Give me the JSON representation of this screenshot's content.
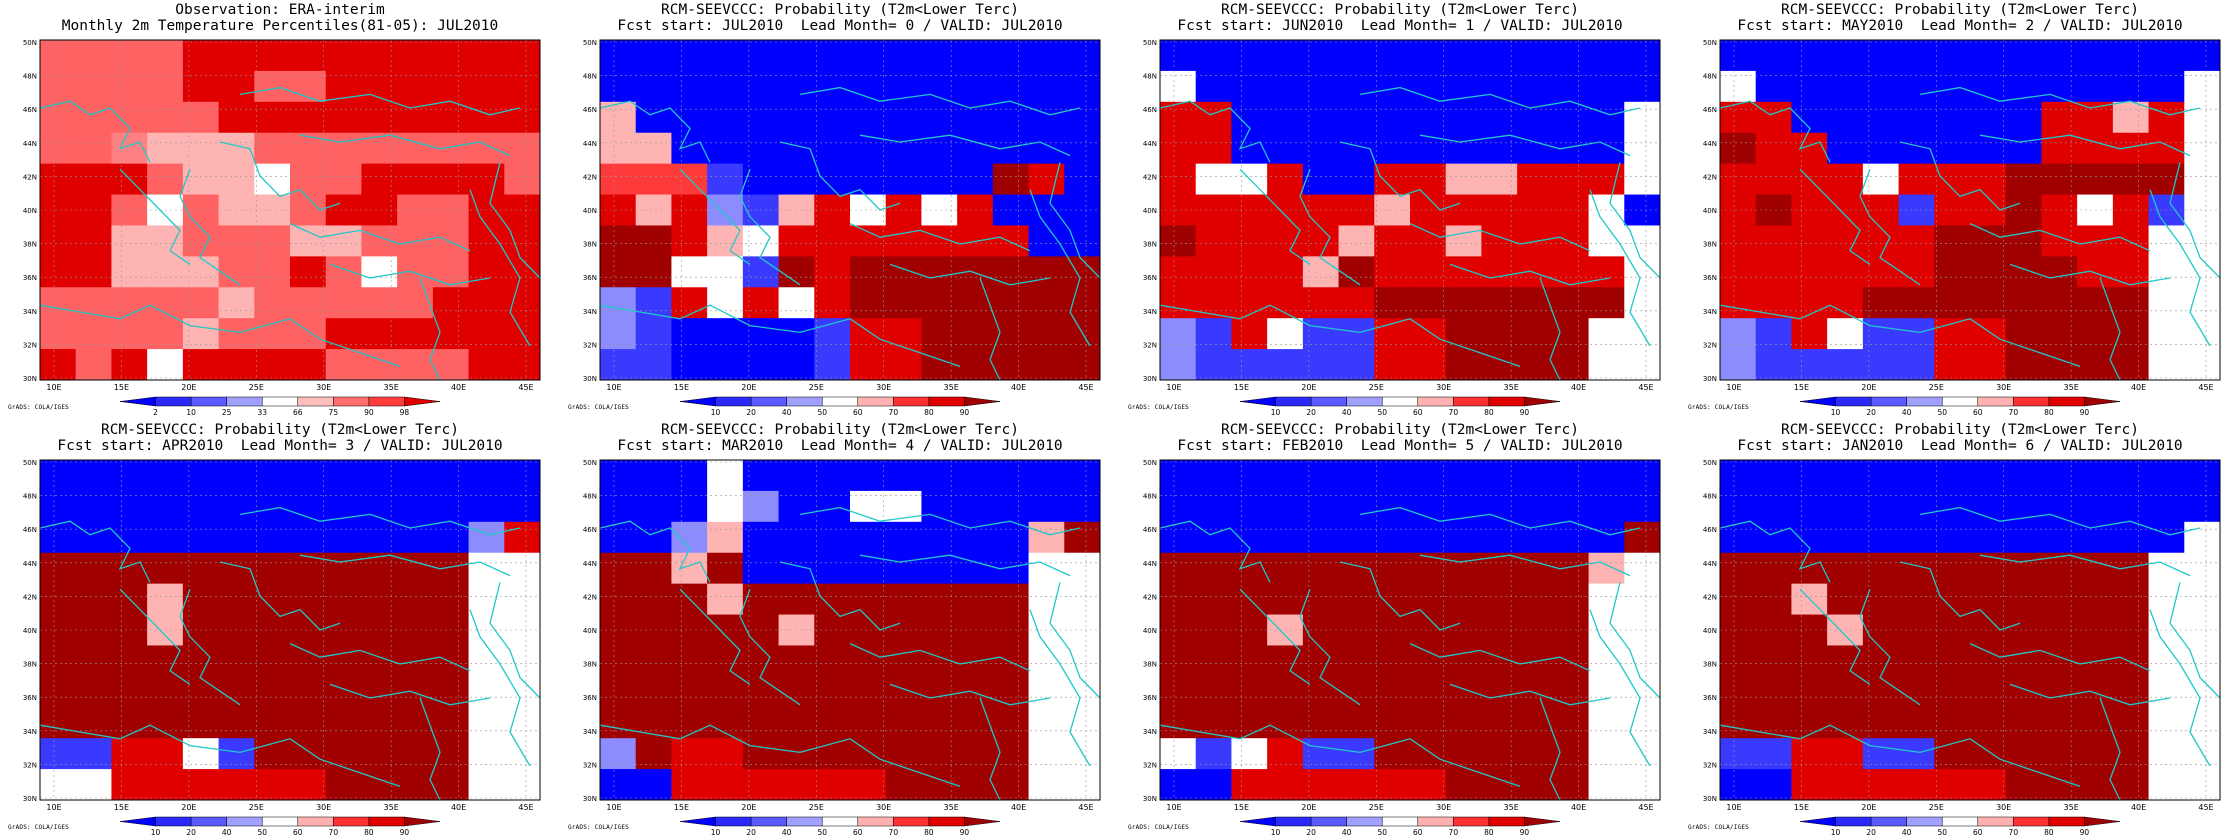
{
  "credit": "GrADS: COLA/IGES",
  "lat_labels": [
    "50N",
    "48N",
    "46N",
    "44N",
    "42N",
    "40N",
    "38N",
    "36N",
    "34N",
    "32N",
    "30N"
  ],
  "lon_labels": [
    "10E",
    "15E",
    "20E",
    "25E",
    "30E",
    "35E",
    "40E",
    "45E"
  ],
  "obs_colorbar": {
    "labels": [
      "2",
      "10",
      "25",
      "33",
      "66",
      "75",
      "90",
      "98"
    ],
    "colors": [
      "#0000ff",
      "#2a2aff",
      "#5a5aff",
      "#a0a0ff",
      "#ffffff",
      "#ffbebe",
      "#ff6f6f",
      "#ff3c3c",
      "#e00000"
    ]
  },
  "prob_colorbar": {
    "labels": [
      "10",
      "20",
      "40",
      "50",
      "60",
      "70",
      "80",
      "90"
    ],
    "colors": [
      "#0000ff",
      "#2a2aff",
      "#5a5aff",
      "#a0a0ff",
      "#ffffff",
      "#ffb0b0",
      "#ff3030",
      "#e00000",
      "#a00000"
    ]
  },
  "panels": [
    {
      "id": "obs",
      "title1": "Observation: ERA-interim",
      "title2": "Monthly 2m Temperature Percentiles(81-05): JUL2010",
      "bar": "obs"
    },
    {
      "id": "lead0",
      "title1": "RCM-SEEVCCC: Probability (T2m<Lower Terc)",
      "title2": "Fcst start: JUL2010  Lead Month= 0 / VALID: JUL2010",
      "bar": "prob"
    },
    {
      "id": "lead1",
      "title1": "RCM-SEEVCCC: Probability (T2m<Lower Terc)",
      "title2": "Fcst start: JUN2010  Lead Month= 1 / VALID: JUL2010",
      "bar": "prob"
    },
    {
      "id": "lead2",
      "title1": "RCM-SEEVCCC: Probability (T2m<Lower Terc)",
      "title2": "Fcst start: MAY2010  Lead Month= 2 / VALID: JUL2010",
      "bar": "prob"
    },
    {
      "id": "lead3",
      "title1": "RCM-SEEVCCC: Probability (T2m<Lower Terc)",
      "title2": "Fcst start: APR2010  Lead Month= 3 / VALID: JUL2010",
      "bar": "prob"
    },
    {
      "id": "lead4",
      "title1": "RCM-SEEVCCC: Probability (T2m<Lower Terc)",
      "title2": "Fcst start: MAR2010  Lead Month= 4 / VALID: JUL2010",
      "bar": "prob"
    },
    {
      "id": "lead5",
      "title1": "RCM-SEEVCCC: Probability (T2m<Lower Terc)",
      "title2": "Fcst start: FEB2010  Lead Month= 5 / VALID: JUL2010",
      "bar": "prob"
    },
    {
      "id": "lead6",
      "title1": "RCM-SEEVCCC: Probability (T2m<Lower Terc)",
      "title2": "Fcst start: JAN2010  Lead Month= 6 / VALID: JUL2010",
      "bar": "prob"
    }
  ]
}
